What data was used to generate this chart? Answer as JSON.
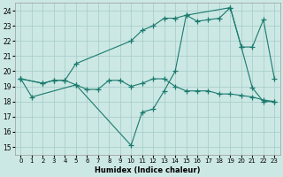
{
  "xlabel": "Humidex (Indice chaleur)",
  "background_color": "#cce8e4",
  "grid_color": "#aacfcb",
  "line_color": "#1a7a6e",
  "xlim": [
    -0.5,
    23.5
  ],
  "ylim": [
    14.5,
    24.5
  ],
  "xticks": [
    0,
    1,
    2,
    3,
    4,
    5,
    6,
    7,
    8,
    9,
    10,
    11,
    12,
    13,
    14,
    15,
    16,
    17,
    18,
    19,
    20,
    21,
    22,
    23
  ],
  "yticks": [
    15,
    16,
    17,
    18,
    19,
    20,
    21,
    22,
    23,
    24
  ],
  "series1_x": [
    0,
    2,
    3,
    4,
    5,
    6,
    7,
    8,
    9,
    10,
    11,
    12,
    13,
    14,
    15,
    16,
    17,
    18,
    19,
    20,
    21,
    22,
    23
  ],
  "series1_y": [
    19.5,
    19.2,
    19.4,
    19.4,
    19.1,
    18.8,
    18.8,
    19.4,
    19.4,
    19.0,
    19.2,
    19.5,
    19.5,
    19.0,
    18.7,
    18.7,
    18.7,
    18.5,
    18.5,
    18.4,
    18.3,
    18.1,
    18.0
  ],
  "series2_x": [
    0,
    2,
    3,
    4,
    5,
    10,
    11,
    12,
    13,
    14,
    15,
    16,
    17,
    18,
    19,
    20,
    21,
    22,
    23
  ],
  "series2_y": [
    19.5,
    19.2,
    19.4,
    19.4,
    20.5,
    22.0,
    22.7,
    23.0,
    23.5,
    23.5,
    23.7,
    23.3,
    23.4,
    23.5,
    24.2,
    21.6,
    21.6,
    23.4,
    19.5
  ],
  "series3_x": [
    0,
    1,
    5,
    10,
    11,
    12,
    13,
    14,
    15,
    19,
    20,
    21,
    22,
    23
  ],
  "series3_y": [
    19.5,
    18.3,
    19.1,
    15.1,
    17.3,
    17.5,
    18.7,
    20.0,
    23.7,
    24.2,
    21.6,
    18.9,
    18.0,
    18.0
  ],
  "marker": "+",
  "markersize": 4
}
